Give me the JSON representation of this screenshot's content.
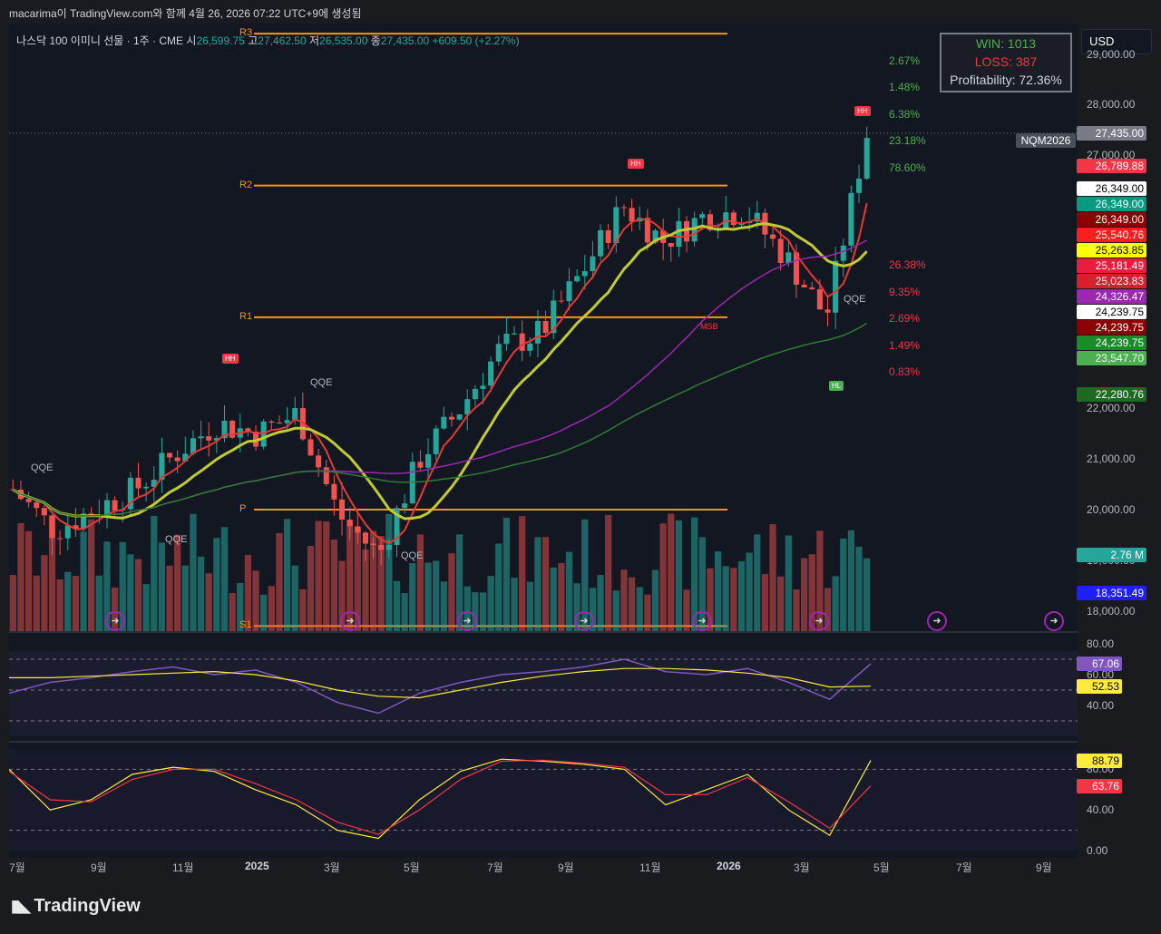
{
  "header": {
    "title": "macarima이 TradingView.com와 함께 4월 26, 2026 07:22 UTC+9에 생성됨"
  },
  "ohlc": {
    "symbol": "나스닥 100 이미니 선물 · 1주 · CME",
    "o_label": "시",
    "o": "26,599.75",
    "h_label": "고",
    "h": "27,462.50",
    "l_label": "저",
    "l": "26,535.00",
    "c_label": "종",
    "c": "27,435.00",
    "chg": "+609.50 (+2.27%)"
  },
  "stats": {
    "win": "WIN: 1013",
    "loss": "LOSS: 387",
    "profit": "Profitability: 72.36%"
  },
  "currency": "USD",
  "symbol_tag": "NQM2026",
  "price_axis": [
    "29,000.00",
    "28,000.00",
    "27,000.00",
    "22,000.00",
    "21,000.00",
    "20,000.00",
    "19,000.00",
    "18,000.00"
  ],
  "price_tags": [
    {
      "v": "27,435.00",
      "bg": "#787b86",
      "fg": "#ffffff"
    },
    {
      "v": "26,789.88",
      "bg": "#f23645",
      "fg": "#ffffff"
    },
    {
      "v": "26,349.00",
      "bg": "#ffffff",
      "fg": "#000000"
    },
    {
      "v": "26,349.00",
      "bg": "#089981",
      "fg": "#ffffff"
    },
    {
      "v": "26,349.00",
      "bg": "#8b0000",
      "fg": "#ffffff"
    },
    {
      "v": "25,540.76",
      "bg": "#ff1e1e",
      "fg": "#ffffff"
    },
    {
      "v": "25,263.85",
      "bg": "#ffff00",
      "fg": "#000000"
    },
    {
      "v": "25,181.49",
      "bg": "#e91e3c",
      "fg": "#ffffff"
    },
    {
      "v": "25,023.83",
      "bg": "#d91e2c",
      "fg": "#ffffff"
    },
    {
      "v": "24,326.47",
      "bg": "#9c27b0",
      "fg": "#ffffff"
    },
    {
      "v": "24,239.75",
      "bg": "#ffffff",
      "fg": "#000000"
    },
    {
      "v": "24,239.75",
      "bg": "#8b0000",
      "fg": "#ffffff"
    },
    {
      "v": "24,239.75",
      "bg": "#1b8a2a",
      "fg": "#ffffff"
    },
    {
      "v": "23,547.70",
      "bg": "#4caf50",
      "fg": "#ffffff"
    },
    {
      "v": "22,280.76",
      "bg": "#1b6b20",
      "fg": "#ffffff"
    },
    {
      "v": "2.76 M",
      "bg": "#26a69a",
      "fg": "#ffffff"
    },
    {
      "v": "18,351.49",
      "bg": "#1e1eff",
      "fg": "#ffffff"
    }
  ],
  "fib_green": [
    "2.67%",
    "1.48%",
    "6.38%",
    "23.18%",
    "78.60%"
  ],
  "fib_red": [
    "26.38%",
    "9.35%",
    "2.69%",
    "1.49%",
    "0.83%"
  ],
  "levels": [
    "R3",
    "R2",
    "R1",
    "P",
    "S1"
  ],
  "qqe_label": "QQE",
  "markers": {
    "hh": "HH",
    "hl": "HL",
    "msb": "MSB"
  },
  "rsi_axis": [
    "80.00",
    "60.00",
    "40.00"
  ],
  "rsi_tags": [
    {
      "v": "67.06",
      "bg": "#7e57c2",
      "fg": "#ffffff"
    },
    {
      "v": "52.53",
      "bg": "#ffeb3b",
      "fg": "#000000"
    }
  ],
  "stoch_axis": [
    "80.00",
    "40.00",
    "0.00"
  ],
  "stoch_tags": [
    {
      "v": "88.79",
      "bg": "#ffeb3b",
      "fg": "#000000"
    },
    {
      "v": "63.76",
      "bg": "#f23645",
      "fg": "#ffffff"
    }
  ],
  "time_axis": [
    {
      "t": "7월",
      "bold": false
    },
    {
      "t": "9월",
      "bold": false
    },
    {
      "t": "11월",
      "bold": false
    },
    {
      "t": "2025",
      "bold": true
    },
    {
      "t": "3월",
      "bold": false
    },
    {
      "t": "5월",
      "bold": false
    },
    {
      "t": "7월",
      "bold": false
    },
    {
      "t": "9월",
      "bold": false
    },
    {
      "t": "11월",
      "bold": false
    },
    {
      "t": "2026",
      "bold": true
    },
    {
      "t": "3월",
      "bold": false
    },
    {
      "t": "5월",
      "bold": false
    },
    {
      "t": "7월",
      "bold": false
    },
    {
      "t": "9월",
      "bold": false
    }
  ],
  "logo": "TradingView",
  "chart_data": {
    "type": "candlestick",
    "interval": "1W",
    "ylim": [
      17600,
      29600
    ],
    "x": [
      "2024-07",
      "2024-08",
      "2024-09",
      "2024-10",
      "2024-11",
      "2024-12",
      "2025-01",
      "2025-02",
      "2025-03",
      "2025-04",
      "2025-05",
      "2025-06",
      "2025-07",
      "2025-08",
      "2025-09",
      "2025-10",
      "2025-11",
      "2025-12",
      "2026-01",
      "2026-02",
      "2026-03",
      "2026-04"
    ],
    "close": [
      20400,
      19600,
      20000,
      20400,
      21100,
      21700,
      21500,
      21900,
      19900,
      19100,
      21000,
      22000,
      23200,
      23500,
      24700,
      26000,
      25300,
      25800,
      25900,
      25000,
      23800,
      27435
    ],
    "volume_last": "2.76 M",
    "levels": {
      "R3": 29400,
      "R2": 26400,
      "R1": 23800,
      "P": 20000,
      "S1": 17700
    },
    "rsi": {
      "ylim": [
        20,
        80
      ],
      "rsi": [
        48,
        55,
        58,
        62,
        65,
        60,
        63,
        55,
        42,
        35,
        48,
        55,
        60,
        62,
        65,
        70,
        62,
        60,
        64,
        55,
        44,
        67.06
      ],
      "signal": [
        58,
        58,
        59,
        60,
        61,
        62,
        60,
        56,
        50,
        46,
        45,
        50,
        55,
        59,
        62,
        64,
        64,
        63,
        61,
        58,
        52,
        52.53
      ]
    },
    "stoch": {
      "ylim": [
        0,
        100
      ],
      "k": [
        80,
        40,
        50,
        75,
        82,
        78,
        60,
        45,
        20,
        12,
        50,
        78,
        90,
        88,
        85,
        80,
        45,
        60,
        75,
        40,
        15,
        88.79
      ],
      "d": [
        78,
        50,
        48,
        70,
        80,
        80,
        66,
        50,
        28,
        16,
        40,
        70,
        88,
        89,
        86,
        82,
        55,
        55,
        72,
        48,
        22,
        63.76
      ]
    }
  }
}
